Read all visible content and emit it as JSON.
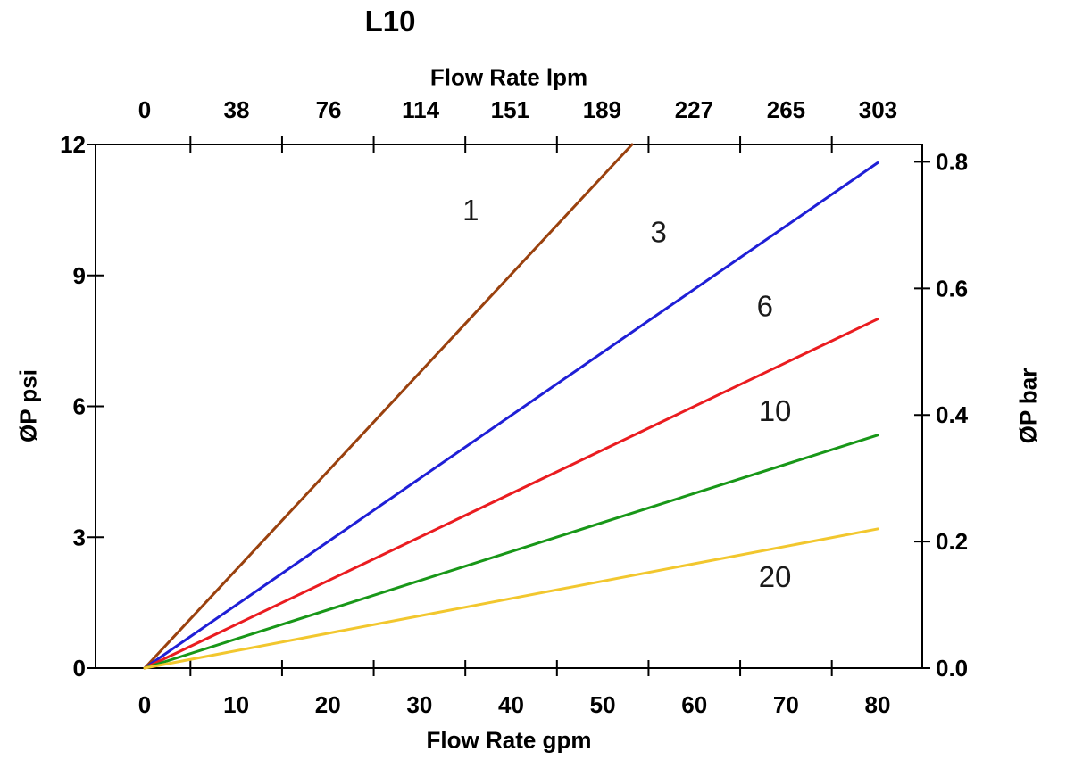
{
  "chart_data": {
    "type": "line",
    "title": "L10",
    "background": "#ffffff",
    "axis_color": "#000000",
    "text_color": "#000000",
    "axes": {
      "bottom": {
        "label": "Flow Rate gpm",
        "tick_labels": [
          0,
          10,
          20,
          30,
          40,
          50,
          60,
          70,
          80
        ],
        "tick_marks_between_gpm": [
          5,
          15,
          25,
          35,
          45,
          55,
          65,
          75
        ],
        "range": [
          0,
          80
        ]
      },
      "top": {
        "label": "Flow Rate lpm",
        "tick_labels": [
          0,
          38,
          76,
          114,
          151,
          189,
          227,
          265,
          303
        ],
        "note": "lpm positions = lpm / 3.78541 gpm"
      },
      "left": {
        "label": "ØP psi",
        "tick_labels": [
          0,
          3,
          6,
          9,
          12
        ],
        "range": [
          0,
          12
        ]
      },
      "right": {
        "label": "ØP bar",
        "tick_labels": [
          "0.0",
          "0.2",
          "0.4",
          "0.6",
          "0.8"
        ],
        "tick_values": [
          0,
          0.2,
          0.4,
          0.6,
          0.8
        ],
        "note": "bar positions = bar × 14.5038 psi"
      }
    },
    "series": [
      {
        "name": "1",
        "color": "#9A410E",
        "start_gpm_psi": [
          0,
          0
        ],
        "end_gpm_psi": [
          53.2,
          12
        ],
        "label_at_gpm_psi": [
          35.6,
          10.5
        ]
      },
      {
        "name": "3",
        "color": "#1F1FD6",
        "start_gpm_psi": [
          0,
          0
        ],
        "end_gpm_psi": [
          80,
          11.58
        ],
        "label_at_gpm_psi": [
          56.1,
          10.0
        ]
      },
      {
        "name": "6",
        "color": "#EA1C20",
        "start_gpm_psi": [
          0,
          0
        ],
        "end_gpm_psi": [
          80,
          8.0
        ],
        "label_at_gpm_psi": [
          67.7,
          8.3
        ]
      },
      {
        "name": "10",
        "color": "#189718",
        "start_gpm_psi": [
          0,
          0
        ],
        "end_gpm_psi": [
          80,
          5.34
        ],
        "label_at_gpm_psi": [
          68.8,
          5.9
        ]
      },
      {
        "name": "20",
        "color": "#F2C72E",
        "start_gpm_psi": [
          0,
          0
        ],
        "end_gpm_psi": [
          80,
          3.19
        ],
        "label_at_gpm_psi": [
          68.8,
          2.1
        ]
      }
    ]
  }
}
